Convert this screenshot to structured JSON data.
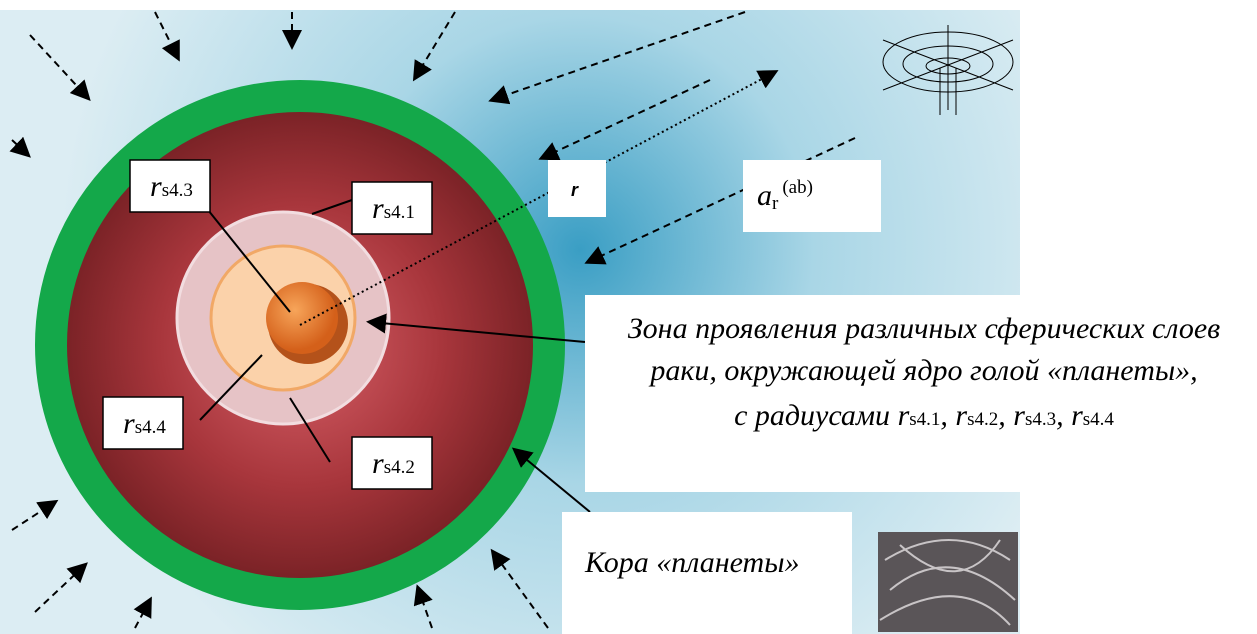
{
  "labels": {
    "rs43": {
      "main": "r",
      "sub": "s4.3"
    },
    "rs41": {
      "main": "r",
      "sub": "s4.1"
    },
    "rs44": {
      "main": "r",
      "sub": "s4.4"
    },
    "rs42": {
      "main": "r",
      "sub": "s4.2"
    },
    "r": "r",
    "ar": {
      "main": "a",
      "sub": "r",
      "sup": "(ab)"
    }
  },
  "caption": {
    "line1": "Зона проявления различных сферических слоев",
    "line2": "раки, окружающей ядро голой «планеты»,",
    "prefix": "с радиусами",
    "separator": ",",
    "radii": [
      {
        "main": "r",
        "sub": "s4.1"
      },
      {
        "main": "r",
        "sub": "s4.2"
      },
      {
        "main": "r",
        "sub": "s4.3"
      },
      {
        "main": "r",
        "sub": "s4.4"
      }
    ]
  },
  "crust": "Кора «планеты»"
}
